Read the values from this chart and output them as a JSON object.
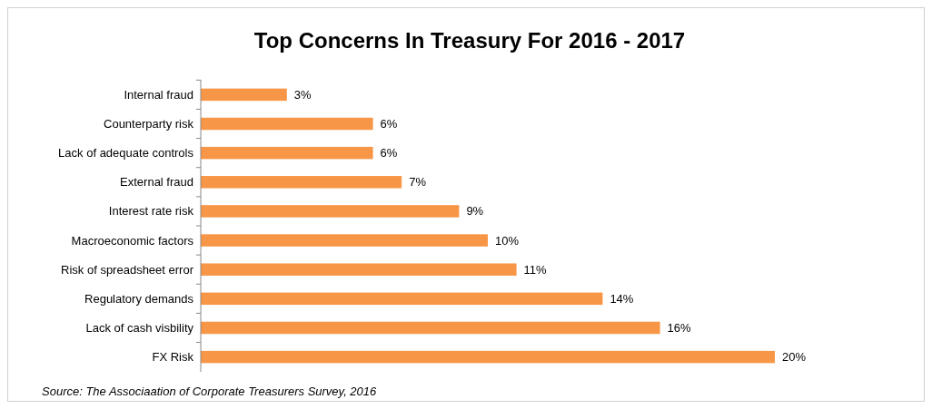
{
  "chart_data": {
    "type": "bar",
    "orientation": "horizontal",
    "title": "Top Concerns In Treasury For 2016 - 2017",
    "categories": [
      "Internal fraud",
      "Counterparty risk",
      "Lack of adequate controls",
      "External fraud",
      "Interest rate risk",
      "Macroeconomic factors",
      "Risk of spreadsheet error",
      "Regulatory demands",
      "Lack of cash visbility",
      "FX Risk"
    ],
    "values": [
      3,
      6,
      6,
      7,
      9,
      10,
      11,
      14,
      16,
      20
    ],
    "value_labels": [
      "3%",
      "6%",
      "6%",
      "7%",
      "9%",
      "10%",
      "11%",
      "14%",
      "16%",
      "20%"
    ],
    "color": "#f79646",
    "annotations": [
      "Source: The Associaation of Corporate Treasurers Survey, 2016"
    ]
  }
}
